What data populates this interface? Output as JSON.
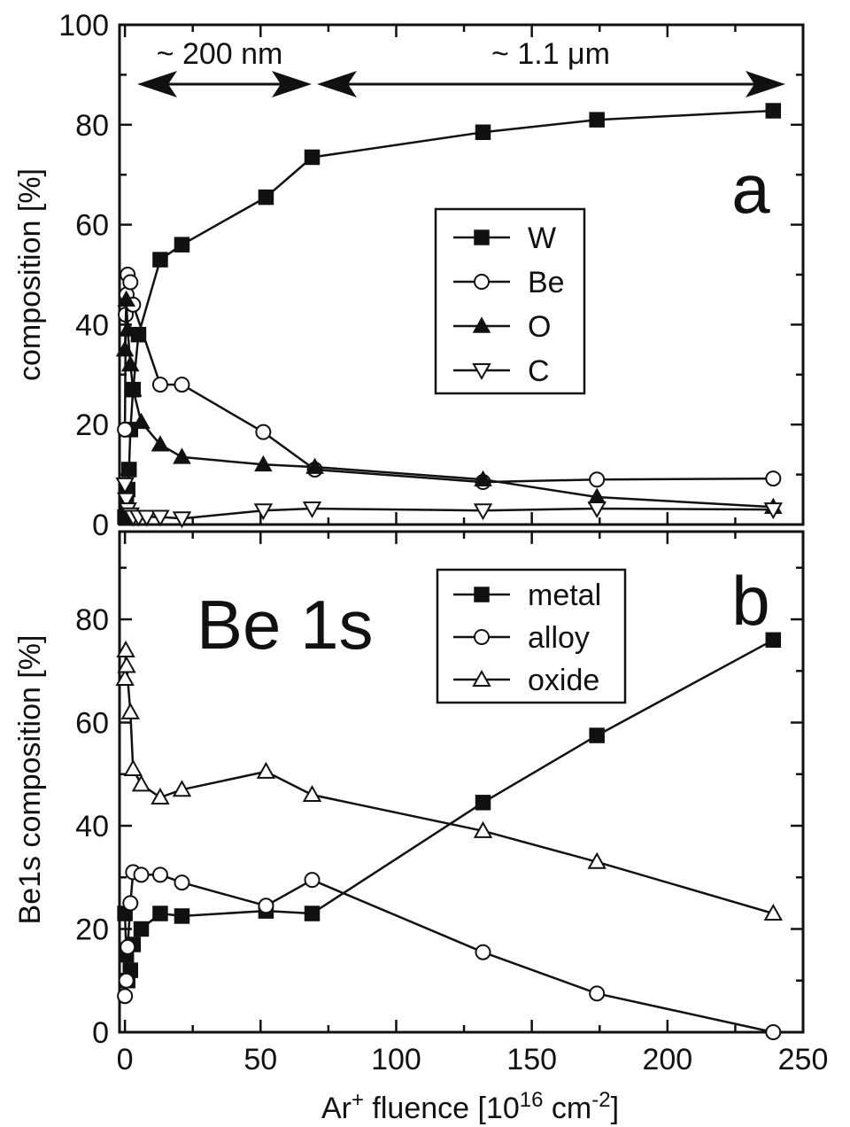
{
  "chart_data": [
    {
      "panel_label": "a",
      "type": "line",
      "ylabel": "composition [%]",
      "ylim": [
        0,
        100
      ],
      "yticks": [
        0,
        20,
        40,
        60,
        80,
        100
      ],
      "xlim": [
        -2,
        250
      ],
      "annotations": [
        {
          "text": "~ 200 nm",
          "x_from": 0,
          "x_to": 70
        },
        {
          "text": "~ 1.1 μm",
          "x_from": 70,
          "x_to": 240
        }
      ],
      "legend": {
        "position": "center-right"
      },
      "series": [
        {
          "name": "W",
          "marker": "square-filled",
          "points": [
            [
              0,
              1.5
            ],
            [
              0.5,
              4
            ],
            [
              1,
              7
            ],
            [
              1.5,
              11
            ],
            [
              2,
              19
            ],
            [
              3,
              27
            ],
            [
              5,
              38
            ],
            [
              13,
              53
            ],
            [
              21,
              56
            ],
            [
              52,
              65.5
            ],
            [
              69,
              73.5
            ],
            [
              132,
              78.5
            ],
            [
              174,
              81
            ],
            [
              239,
              82.8
            ]
          ]
        },
        {
          "name": "Be",
          "marker": "circle-open",
          "points": [
            [
              0,
              19
            ],
            [
              0.3,
              42
            ],
            [
              0.6,
              46
            ],
            [
              1,
              50
            ],
            [
              2,
              48.5
            ],
            [
              3,
              44
            ],
            [
              13,
              28
            ],
            [
              21,
              28
            ],
            [
              51,
              18.5
            ],
            [
              70,
              11
            ],
            [
              132,
              8.5
            ],
            [
              174,
              9
            ],
            [
              239,
              9.2
            ]
          ]
        },
        {
          "name": "O",
          "marker": "triangle-up-filled",
          "points": [
            [
              0,
              35
            ],
            [
              0.5,
              45
            ],
            [
              1,
              39
            ],
            [
              2,
              32
            ],
            [
              3,
              27
            ],
            [
              6,
              20.5
            ],
            [
              13,
              16
            ],
            [
              21,
              13.5
            ],
            [
              51,
              12
            ],
            [
              70,
              11.5
            ],
            [
              132,
              9
            ],
            [
              174,
              5.5
            ],
            [
              239,
              3.5
            ]
          ]
        },
        {
          "name": "C",
          "marker": "triangle-down-open",
          "points": [
            [
              0,
              8
            ],
            [
              0.5,
              5
            ],
            [
              1,
              3
            ],
            [
              2,
              2
            ],
            [
              3,
              1.5
            ],
            [
              5,
              1.5
            ],
            [
              8,
              1.5
            ],
            [
              13,
              1.5
            ],
            [
              21,
              1.2
            ],
            [
              51,
              2.8
            ],
            [
              69,
              3.2
            ],
            [
              132,
              2.8
            ],
            [
              174,
              3.2
            ],
            [
              239,
              3
            ]
          ]
        }
      ]
    },
    {
      "panel_label": "b",
      "type": "line",
      "ylabel": "Be1s composition [%]",
      "xlabel": "Ar+ fluence [10^16 cm^-2]",
      "ylim": [
        0,
        97
      ],
      "yticks": [
        0,
        20,
        40,
        60,
        80
      ],
      "xlim": [
        -2,
        250
      ],
      "xticks": [
        0,
        50,
        100,
        150,
        200,
        250
      ],
      "legend": {
        "position": "top-right"
      },
      "series": [
        {
          "name": "metal",
          "marker": "square-filled",
          "points": [
            [
              0,
              23
            ],
            [
              0.5,
              15
            ],
            [
              1,
              10
            ],
            [
              2,
              12
            ],
            [
              3,
              17
            ],
            [
              6,
              20
            ],
            [
              13,
              23
            ],
            [
              21,
              22.5
            ],
            [
              52,
              23.5
            ],
            [
              69,
              23
            ],
            [
              132,
              44.5
            ],
            [
              174,
              57.5
            ],
            [
              239,
              76
            ]
          ]
        },
        {
          "name": "alloy",
          "marker": "circle-open",
          "points": [
            [
              0,
              7
            ],
            [
              0.5,
              10
            ],
            [
              1,
              16.5
            ],
            [
              2,
              25
            ],
            [
              3,
              31
            ],
            [
              6,
              30.5
            ],
            [
              13,
              30.5
            ],
            [
              21,
              29
            ],
            [
              52,
              24.5
            ],
            [
              69,
              29.5
            ],
            [
              132,
              15.5
            ],
            [
              174,
              7.5
            ],
            [
              239,
              0
            ]
          ]
        },
        {
          "name": "oxide",
          "marker": "triangle-up-open",
          "points": [
            [
              0,
              68.5
            ],
            [
              0.3,
              74
            ],
            [
              0.6,
              71
            ],
            [
              2,
              62
            ],
            [
              3,
              51
            ],
            [
              6,
              48
            ],
            [
              13,
              45.5
            ],
            [
              21,
              47
            ],
            [
              52,
              50.5
            ],
            [
              69,
              46
            ],
            [
              132,
              39
            ],
            [
              174,
              33
            ],
            [
              239,
              23
            ]
          ]
        }
      ]
    }
  ],
  "labels": {
    "ylabel_a": "composition [%]",
    "ylabel_b": "Be1s composition [%]",
    "xlabel_main": "Ar",
    "xlabel_sup": "+",
    "xlabel_mid": " fluence [10",
    "xlabel_sup2": "16",
    "xlabel_mid2": " cm",
    "xlabel_sup3": "-2",
    "xlabel_end": "]",
    "panel_a_letter": "a",
    "panel_b_letter": "b",
    "panel_b_title": "Be 1s",
    "annot_200nm": "~ 200 nm",
    "annot_1um": "~ 1.1 μm"
  }
}
